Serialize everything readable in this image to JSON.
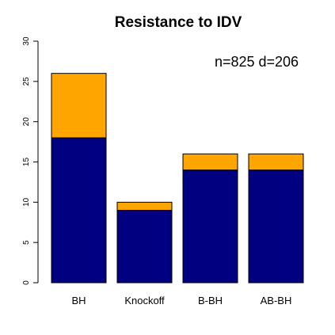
{
  "chart_data": {
    "type": "bar",
    "stacked": true,
    "title": "Resistance to IDV",
    "annotation": "n=825 d=206",
    "xlabel": "",
    "ylabel": "",
    "categories": [
      "BH",
      "Knockoff",
      "B-BH",
      "AB-BH"
    ],
    "series": [
      {
        "color": "#000080",
        "values": [
          18,
          9,
          14,
          14
        ]
      },
      {
        "color": "#ffa500",
        "values": [
          8,
          1,
          2,
          2
        ]
      }
    ],
    "ylim": [
      0,
      30
    ],
    "yticks": [
      0,
      5,
      10,
      15,
      20,
      25,
      30
    ],
    "grid": false,
    "legend": "none"
  }
}
